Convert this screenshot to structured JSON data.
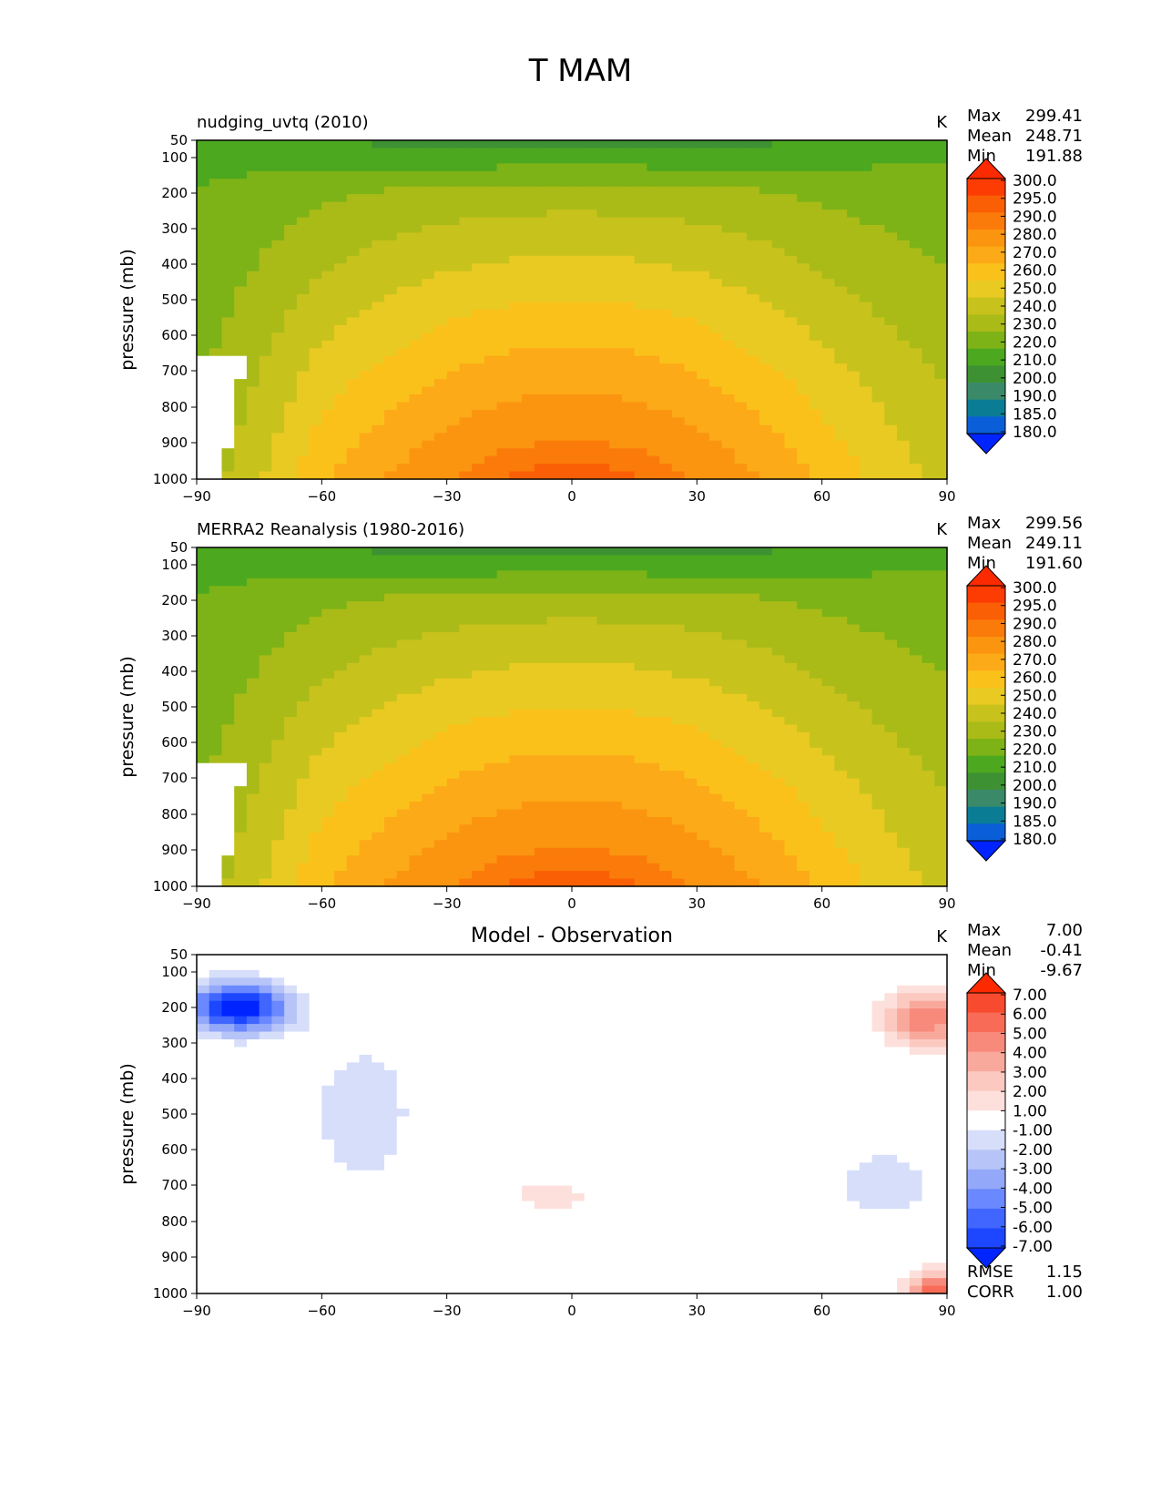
{
  "title": "T MAM",
  "colors": {
    "abs": [
      "#0024ff",
      "#0a5fd8",
      "#0a7d95",
      "#3a8a6a",
      "#3e9132",
      "#4ca81e",
      "#7db316",
      "#aabb18",
      "#c8c21c",
      "#e8ca22",
      "#fbc11b",
      "#fcaa17",
      "#fb9510",
      "#fb7b0a",
      "#fb5f05",
      "#fc3c03",
      "#fc2a00"
    ],
    "diff": [
      "#0024ff",
      "#1c47ff",
      "#4066ff",
      "#6a88ff",
      "#93a8f8",
      "#b6c4f8",
      "#d6defa",
      "#ffffff",
      "#fde0dc",
      "#fbc9c0",
      "#f9a99c",
      "#f88a7b",
      "#f86b56",
      "#f84a2e",
      "#fc2a00"
    ]
  },
  "chart_data": [
    {
      "type": "contourf",
      "subtitle": "nudging_uvtq (2010)",
      "units": "K",
      "ylabel": "pressure (mb)",
      "xlim": [
        -90,
        90
      ],
      "x_ticks": [
        "−90",
        "−60",
        "−30",
        "0",
        "30",
        "60",
        "90"
      ],
      "y_ticks": [
        "50",
        "100",
        "200",
        "300",
        "400",
        "500",
        "600",
        "700",
        "800",
        "900",
        "1000"
      ],
      "levels": [
        50,
        100,
        200,
        300,
        400,
        500,
        600,
        700,
        800,
        900,
        1000
      ],
      "stats": [
        {
          "label": "Max",
          "value": "299.41"
        },
        {
          "label": "Mean",
          "value": "248.71"
        },
        {
          "label": "Min",
          "value": "191.88"
        }
      ],
      "colorbar_labels": [
        "300.0",
        "295.0",
        "290.0",
        "280.0",
        "270.0",
        "260.0",
        "250.0",
        "240.0",
        "230.0",
        "220.0",
        "210.0",
        "200.0",
        "190.0",
        "185.0",
        "180.0"
      ],
      "field": {
        "kind": "abs",
        "mean": 248.71,
        "min": 191.88,
        "max": 299.41
      }
    },
    {
      "type": "contourf",
      "subtitle": "MERRA2 Reanalysis (1980-2016)",
      "units": "K",
      "ylabel": "pressure (mb)",
      "xlim": [
        -90,
        90
      ],
      "x_ticks": [
        "−90",
        "−60",
        "−30",
        "0",
        "30",
        "60",
        "90"
      ],
      "y_ticks": [
        "50",
        "100",
        "200",
        "300",
        "400",
        "500",
        "600",
        "700",
        "800",
        "900",
        "1000"
      ],
      "levels": [
        50,
        100,
        200,
        300,
        400,
        500,
        600,
        700,
        800,
        900,
        1000
      ],
      "stats": [
        {
          "label": "Max",
          "value": "299.56"
        },
        {
          "label": "Mean",
          "value": "249.11"
        },
        {
          "label": "Min",
          "value": "191.60"
        }
      ],
      "colorbar_labels": [
        "300.0",
        "295.0",
        "290.0",
        "280.0",
        "270.0",
        "260.0",
        "250.0",
        "240.0",
        "230.0",
        "220.0",
        "210.0",
        "200.0",
        "190.0",
        "185.0",
        "180.0"
      ],
      "field": {
        "kind": "abs",
        "mean": 249.11,
        "min": 191.6,
        "max": 299.56
      }
    },
    {
      "type": "contourf",
      "subtitle": "Model - Observation",
      "units": "K",
      "ylabel": "pressure (mb)",
      "xlim": [
        -90,
        90
      ],
      "x_ticks": [
        "−90",
        "−60",
        "−30",
        "0",
        "30",
        "60",
        "90"
      ],
      "y_ticks": [
        "50",
        "100",
        "200",
        "300",
        "400",
        "500",
        "600",
        "700",
        "800",
        "900",
        "1000"
      ],
      "levels": [
        50,
        100,
        200,
        300,
        400,
        500,
        600,
        700,
        800,
        900,
        1000
      ],
      "stats": [
        {
          "label": "Max",
          "value": "7.00"
        },
        {
          "label": "Mean",
          "value": "-0.41"
        },
        {
          "label": "Min",
          "value": "-9.67"
        }
      ],
      "colorbar_labels": [
        "7.00",
        "6.00",
        "5.00",
        "4.00",
        "3.00",
        "2.00",
        "1.00",
        "-1.00",
        "-2.00",
        "-3.00",
        "-4.00",
        "-5.00",
        "-6.00",
        "-7.00"
      ],
      "extra_stats": [
        {
          "label": "RMSE",
          "value": "1.15"
        },
        {
          "label": "CORR",
          "value": "1.00"
        }
      ],
      "field": {
        "kind": "diff",
        "mean": -0.41,
        "min": -9.67,
        "max": 7.0
      }
    }
  ]
}
